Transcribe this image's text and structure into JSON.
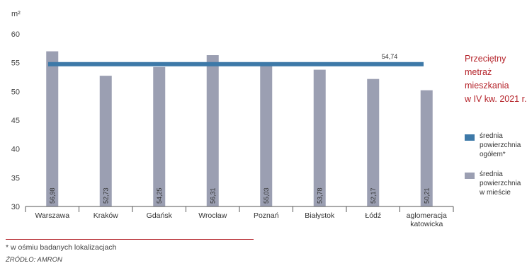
{
  "chart_data": {
    "type": "bar",
    "unit_label": "m²",
    "categories": [
      "Warszawa",
      "Kraków",
      "Gdańsk",
      "Wrocław",
      "Poznań",
      "Białystok",
      "Łódź",
      [
        "aglomeracja",
        "katowicka"
      ]
    ],
    "series": [
      {
        "name": "średnia powierzchnia w mieście",
        "values": [
          56.98,
          52.73,
          54.25,
          56.31,
          55.03,
          53.78,
          52.17,
          50.21
        ],
        "color": "#9b9fb2"
      }
    ],
    "value_labels": [
      "56,98",
      "52,73",
      "54,25",
      "56,31",
      "55,03",
      "53,78",
      "52,17",
      "50,21"
    ],
    "reference_line": {
      "name": "średnia powierzchnia ogółem*",
      "value": 54.74,
      "label": "54,74",
      "color": "#3d79a8"
    },
    "y_ticks": [
      30,
      35,
      40,
      45,
      50,
      55,
      60
    ],
    "ylim": [
      30,
      60
    ],
    "grid": false,
    "title": "Przeciętny metraż mieszkania w IV kw. 2021 r.",
    "legend_position": "right"
  },
  "side_title_lines": [
    "Przeciętny",
    "metraż",
    "mieszkania",
    "w IV kw. 2021 r."
  ],
  "legend": [
    {
      "lines": [
        "średnia",
        "powierzchnia",
        "ogółem*"
      ],
      "color": "#3d79a8"
    },
    {
      "lines": [
        "średnia",
        "powierzchnia",
        "w mieście"
      ],
      "color": "#9b9fb2"
    }
  ],
  "footnote": "* w ośmiu badanych lokalizacjach",
  "source": "ŹRÓDŁO: AMRON"
}
